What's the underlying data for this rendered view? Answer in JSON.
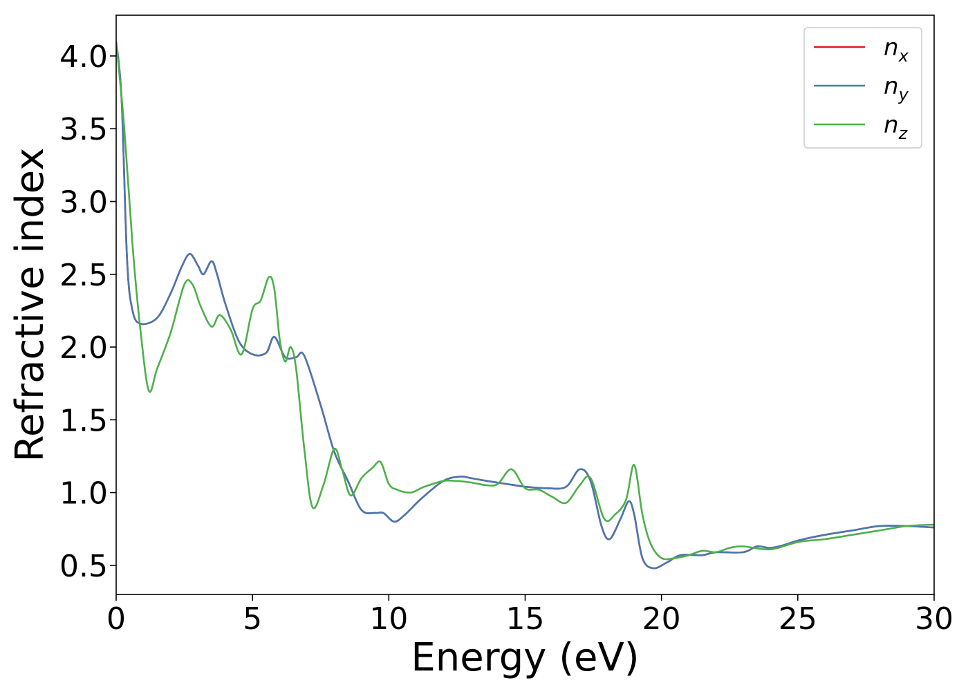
{
  "chart_data": {
    "type": "line",
    "xlabel": "Energy (eV)",
    "ylabel": "Refractive index",
    "xlim": [
      0,
      30
    ],
    "ylim": [
      0.3,
      4.28
    ],
    "xticks": [
      0,
      5,
      10,
      15,
      20,
      25,
      30
    ],
    "xtick_labels": [
      "0",
      "5",
      "10",
      "15",
      "20",
      "25",
      "30"
    ],
    "yticks": [
      0.5,
      1.0,
      1.5,
      2.0,
      2.5,
      3.0,
      3.5,
      4.0
    ],
    "ytick_labels": [
      "0.5",
      "1.0",
      "1.5",
      "2.0",
      "2.5",
      "3.0",
      "3.5",
      "4.0"
    ],
    "grid": false,
    "legend_position": "top-right",
    "series": [
      {
        "name": "n_x",
        "legend_base": "n",
        "legend_sub": "x",
        "color": "#e41a1c",
        "x": [
          0,
          0.2,
          0.4,
          0.6,
          0.9,
          1.5,
          2.0,
          2.4,
          2.7,
          3.0,
          3.2,
          3.5,
          3.7,
          4.0,
          4.5,
          5.0,
          5.5,
          5.8,
          6.2,
          6.6,
          6.9,
          7.5,
          8.0,
          8.5,
          9.0,
          9.5,
          9.8,
          10.2,
          10.6,
          11.2,
          12.0,
          12.6,
          13.0,
          13.6,
          14.3,
          15.0,
          15.8,
          16.5,
          17.0,
          17.4,
          17.8,
          18.1,
          18.5,
          18.8,
          19.0,
          19.3,
          19.7,
          20.2,
          20.7,
          21.5,
          22.0,
          23.0,
          23.5,
          24.0,
          24.5,
          25.0,
          26.0,
          27.0,
          28.0,
          29.0,
          30.0
        ],
        "values": [
          4.1,
          3.7,
          2.6,
          2.25,
          2.16,
          2.2,
          2.37,
          2.55,
          2.64,
          2.56,
          2.5,
          2.59,
          2.5,
          2.3,
          2.04,
          1.95,
          1.96,
          2.07,
          1.93,
          1.93,
          1.94,
          1.6,
          1.28,
          1.08,
          0.88,
          0.86,
          0.86,
          0.8,
          0.85,
          0.96,
          1.08,
          1.11,
          1.1,
          1.08,
          1.06,
          1.04,
          1.03,
          1.04,
          1.16,
          1.08,
          0.77,
          0.68,
          0.82,
          0.94,
          0.85,
          0.55,
          0.48,
          0.52,
          0.57,
          0.57,
          0.59,
          0.59,
          0.63,
          0.62,
          0.64,
          0.67,
          0.71,
          0.74,
          0.77,
          0.77,
          0.76
        ]
      },
      {
        "name": "n_y",
        "legend_base": "n",
        "legend_sub": "y",
        "color": "#4878b0",
        "x": [
          0,
          0.2,
          0.4,
          0.6,
          0.9,
          1.5,
          2.0,
          2.4,
          2.7,
          3.0,
          3.2,
          3.5,
          3.7,
          4.0,
          4.5,
          5.0,
          5.5,
          5.8,
          6.2,
          6.6,
          6.9,
          7.5,
          8.0,
          8.5,
          9.0,
          9.5,
          9.8,
          10.2,
          10.6,
          11.2,
          12.0,
          12.6,
          13.0,
          13.6,
          14.3,
          15.0,
          15.8,
          16.5,
          17.0,
          17.4,
          17.8,
          18.1,
          18.5,
          18.8,
          19.0,
          19.3,
          19.7,
          20.2,
          20.7,
          21.5,
          22.0,
          23.0,
          23.5,
          24.0,
          24.5,
          25.0,
          26.0,
          27.0,
          28.0,
          29.0,
          30.0
        ],
        "values": [
          4.1,
          3.7,
          2.6,
          2.25,
          2.16,
          2.2,
          2.37,
          2.55,
          2.64,
          2.56,
          2.5,
          2.59,
          2.5,
          2.3,
          2.04,
          1.95,
          1.96,
          2.07,
          1.93,
          1.93,
          1.94,
          1.6,
          1.28,
          1.08,
          0.88,
          0.86,
          0.86,
          0.8,
          0.85,
          0.96,
          1.08,
          1.11,
          1.1,
          1.08,
          1.06,
          1.04,
          1.03,
          1.04,
          1.16,
          1.08,
          0.77,
          0.68,
          0.82,
          0.94,
          0.85,
          0.55,
          0.48,
          0.52,
          0.57,
          0.57,
          0.59,
          0.59,
          0.63,
          0.62,
          0.64,
          0.67,
          0.71,
          0.74,
          0.77,
          0.77,
          0.76
        ]
      },
      {
        "name": "n_z",
        "legend_base": "n",
        "legend_sub": "z",
        "color": "#4daf4a",
        "x": [
          0,
          0.3,
          0.6,
          0.9,
          1.2,
          1.5,
          2.0,
          2.5,
          2.8,
          3.1,
          3.5,
          3.8,
          4.2,
          4.6,
          5.0,
          5.3,
          5.6,
          5.8,
          6.0,
          6.2,
          6.4,
          6.6,
          6.9,
          7.2,
          7.6,
          8.0,
          8.3,
          8.6,
          9.0,
          9.4,
          9.7,
          10.0,
          10.3,
          10.8,
          11.3,
          12.0,
          12.5,
          13.0,
          13.6,
          14.0,
          14.5,
          15.0,
          15.5,
          16.0,
          16.5,
          17.0,
          17.4,
          17.9,
          18.3,
          18.7,
          19.0,
          19.3,
          19.6,
          20.0,
          20.5,
          21.0,
          21.5,
          22.0,
          22.5,
          23.0,
          24.0,
          25.0,
          26.0,
          27.0,
          28.0,
          29.0,
          30.0
        ],
        "values": [
          4.1,
          3.5,
          2.7,
          2.1,
          1.7,
          1.85,
          2.1,
          2.43,
          2.43,
          2.28,
          2.14,
          2.22,
          2.12,
          1.95,
          2.26,
          2.32,
          2.48,
          2.4,
          2.05,
          1.9,
          2.0,
          1.85,
          1.3,
          0.9,
          1.05,
          1.3,
          1.15,
          0.98,
          1.1,
          1.17,
          1.21,
          1.06,
          1.02,
          1.0,
          1.04,
          1.08,
          1.08,
          1.07,
          1.05,
          1.06,
          1.16,
          1.03,
          1.02,
          0.97,
          0.93,
          1.05,
          1.1,
          0.82,
          0.85,
          0.95,
          1.19,
          0.85,
          0.65,
          0.55,
          0.55,
          0.57,
          0.6,
          0.59,
          0.62,
          0.63,
          0.61,
          0.66,
          0.68,
          0.71,
          0.74,
          0.77,
          0.78
        ]
      }
    ]
  }
}
